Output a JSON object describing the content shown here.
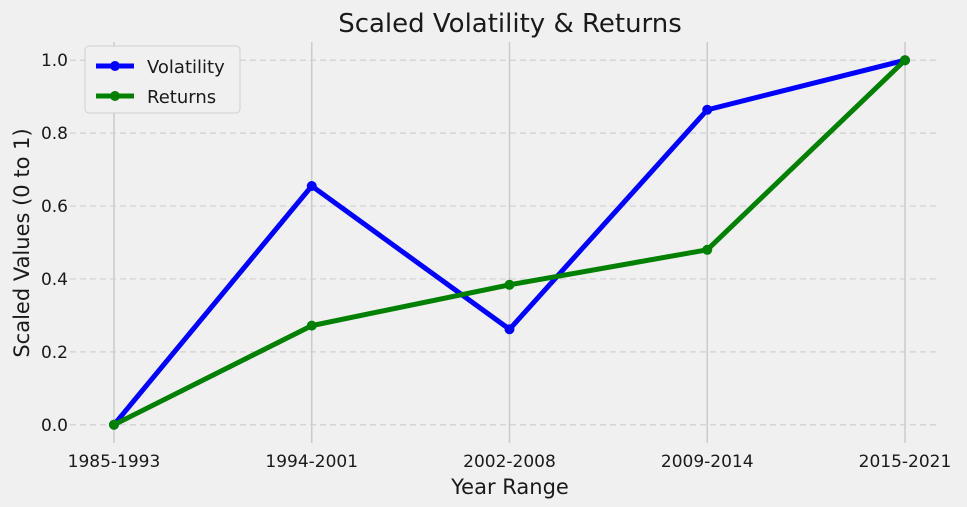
{
  "chart_data": {
    "type": "line",
    "title": "Scaled Volatility & Returns",
    "xlabel": "Year Range",
    "ylabel": "Scaled Values (0 to 1)",
    "categories": [
      "1985-1993",
      "1994-2001",
      "2002-2008",
      "2009-2014",
      "2015-2021"
    ],
    "ylim": [
      -0.05,
      1.05
    ],
    "yticks": [
      0.0,
      0.2,
      0.4,
      0.6,
      0.8,
      1.0
    ],
    "ytick_labels": [
      "0.0",
      "0.2",
      "0.4",
      "0.6",
      "0.8",
      "1.0"
    ],
    "grid": {
      "x": "solid",
      "y": "dashed"
    },
    "legend": "top-left",
    "series": [
      {
        "name": "Volatility",
        "color": "#0000ff",
        "values": [
          0.0,
          0.655,
          0.262,
          0.864,
          1.0
        ]
      },
      {
        "name": "Returns",
        "color": "#008000",
        "values": [
          0.0,
          0.272,
          0.384,
          0.48,
          1.0
        ]
      }
    ]
  }
}
